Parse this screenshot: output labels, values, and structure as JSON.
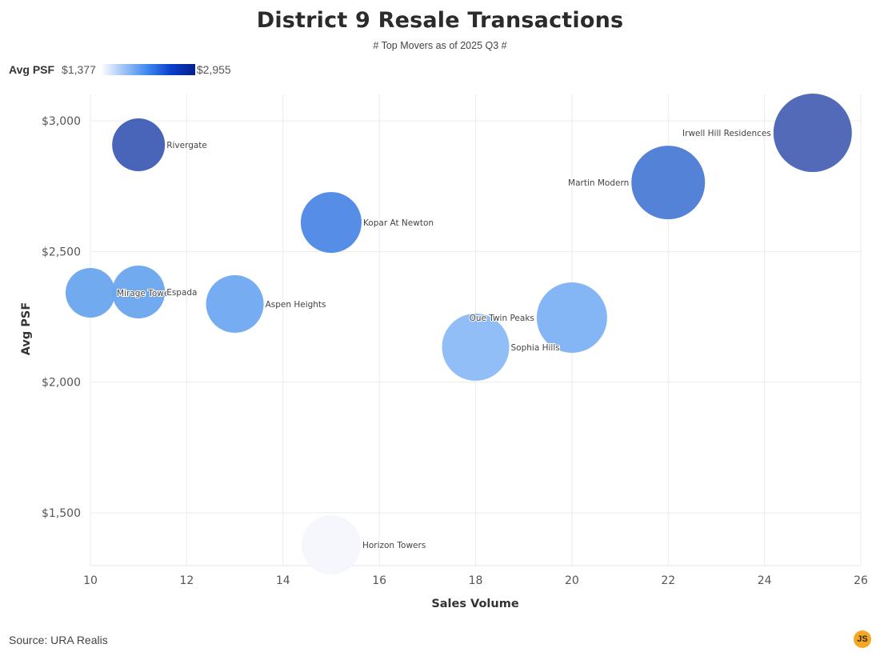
{
  "header": {
    "title": "District 9 Resale Transactions",
    "subtitle": "# Top Movers as of 2025 Q3 #"
  },
  "legend": {
    "title": "Avg PSF",
    "min_label": "$1,377",
    "max_label": "$2,955",
    "gradient_colors": [
      "#ffffff",
      "#9cc2f5",
      "#3c86ee",
      "#0a3ec9",
      "#061f8f"
    ]
  },
  "footer": {
    "source": "Source: URA Realis",
    "badge": "JS"
  },
  "chart_data": {
    "type": "scatter",
    "subtype": "bubble",
    "title": "District 9 Resale Transactions",
    "subtitle": "# Top Movers as of 2025 Q3 #",
    "xlabel": "Sales Volume",
    "ylabel": "Avg PSF",
    "xlim": [
      10,
      26
    ],
    "ylim": [
      1300,
      3100
    ],
    "xticks": [
      10,
      12,
      14,
      16,
      18,
      20,
      22,
      24,
      26
    ],
    "yticks": [
      1500,
      2000,
      2500,
      3000
    ],
    "ytick_labels": [
      "$1,500",
      "$2,000",
      "$2,500",
      "$3,000"
    ],
    "grid": true,
    "color_scale": {
      "label": "Avg PSF",
      "min": 1377,
      "max": 2955
    },
    "points": [
      {
        "name": "Rivergate",
        "x": 11,
        "y": 2908,
        "r": 33,
        "color": "#3f5db5",
        "label_side": "right"
      },
      {
        "name": "Mirage Towers",
        "x": 10,
        "y": 2342,
        "r": 31,
        "color": "#6aa5ef",
        "label_side": "right",
        "label_text": "Mirage Towe"
      },
      {
        "name": "Espada",
        "x": 11,
        "y": 2345,
        "r": 33,
        "color": "#6aa5ef",
        "label_side": "right"
      },
      {
        "name": "Aspen Heights",
        "x": 13,
        "y": 2299,
        "r": 36,
        "color": "#6fa9f1",
        "label_side": "right"
      },
      {
        "name": "Kopar At Newton",
        "x": 15,
        "y": 2611,
        "r": 38,
        "color": "#4d88e6",
        "label_side": "right"
      },
      {
        "name": "Sophia Hills",
        "x": 18,
        "y": 2134,
        "r": 42,
        "color": "#8cbaf7",
        "label_side": "right"
      },
      {
        "name": "Oue Twin Peaks",
        "x": 20,
        "y": 2247,
        "r": 44,
        "color": "#7db2f4",
        "label_side": "left"
      },
      {
        "name": "Martin Modern",
        "x": 22,
        "y": 2764,
        "r": 46,
        "color": "#4a7bd4",
        "label_side": "left"
      },
      {
        "name": "Irwell Hill Residences",
        "x": 25,
        "y": 2954,
        "r": 49,
        "color": "#4a62b4",
        "label_side": "left"
      },
      {
        "name": "Horizon Towers",
        "x": 15,
        "y": 1377,
        "r": 37,
        "color": "#f4f7fd",
        "label_side": "right"
      }
    ]
  }
}
